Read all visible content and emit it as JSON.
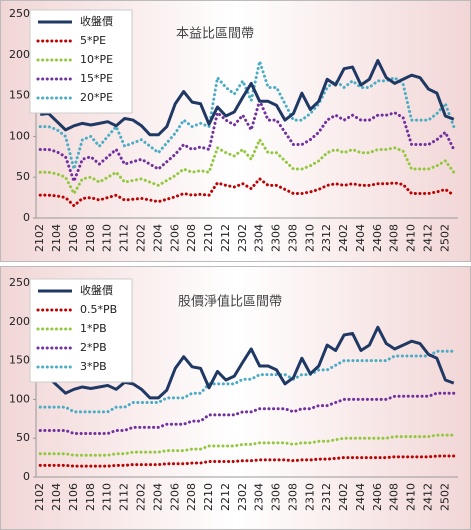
{
  "chart_data": [
    {
      "type": "line",
      "title": "本益比區間帶",
      "legend": "upper left",
      "grid": false,
      "categories": [
        "2102",
        null,
        "2104",
        null,
        "2106",
        null,
        "2108",
        null,
        "2110",
        null,
        "2112",
        null,
        "2202",
        null,
        "2204",
        null,
        "2206",
        null,
        "2208",
        null,
        "2210",
        null,
        "2212",
        null,
        "2302",
        null,
        "2304",
        null,
        "2306",
        null,
        "2308",
        null,
        "2310",
        null,
        "2312",
        null,
        "2402",
        null,
        "2404",
        null,
        "2406",
        null,
        "2408",
        null,
        "2410",
        null,
        "2412",
        null,
        "2502",
        null
      ],
      "ylim": [
        0,
        250
      ],
      "yticks": [
        0,
        50,
        100,
        150,
        200,
        250
      ],
      "series": [
        {
          "name": "收盤價",
          "color": "#1f3864",
          "style": "solid",
          "values": [
            127,
            128,
            118,
            108,
            113,
            116,
            114,
            116,
            118,
            113,
            122,
            120,
            113,
            102,
            102,
            112,
            140,
            155,
            142,
            140,
            115,
            136,
            125,
            130,
            148,
            165,
            143,
            143,
            138,
            120,
            128,
            153,
            133,
            143,
            170,
            163,
            183,
            185,
            163,
            170,
            193,
            172,
            165,
            170,
            175,
            172,
            158,
            153,
            125,
            121
          ]
        },
        {
          "name": "5*PE",
          "color": "#c00000",
          "style": "dotted",
          "values": [
            28,
            28,
            27,
            25,
            15,
            24,
            25,
            22,
            25,
            28,
            22,
            23,
            24,
            22,
            20,
            23,
            26,
            30,
            28,
            29,
            28,
            43,
            40,
            38,
            42,
            36,
            48,
            40,
            40,
            35,
            30,
            30,
            32,
            35,
            40,
            42,
            40,
            42,
            40,
            40,
            42,
            42,
            43,
            41,
            30,
            30,
            30,
            32,
            35,
            28
          ]
        },
        {
          "name": "10*PE",
          "color": "#92c83e",
          "style": "dotted",
          "values": [
            56,
            56,
            54,
            50,
            30,
            48,
            50,
            44,
            50,
            56,
            44,
            46,
            48,
            44,
            40,
            46,
            52,
            60,
            56,
            58,
            56,
            86,
            80,
            76,
            84,
            72,
            96,
            80,
            80,
            70,
            60,
            60,
            64,
            70,
            80,
            84,
            80,
            84,
            80,
            80,
            84,
            84,
            86,
            82,
            60,
            60,
            60,
            64,
            70,
            56
          ]
        },
        {
          "name": "15*PE",
          "color": "#7030a0",
          "style": "dotted",
          "values": [
            84,
            84,
            81,
            75,
            45,
            72,
            75,
            66,
            75,
            84,
            66,
            69,
            72,
            66,
            60,
            69,
            78,
            90,
            84,
            87,
            84,
            129,
            120,
            114,
            126,
            108,
            144,
            120,
            120,
            105,
            90,
            90,
            96,
            105,
            120,
            126,
            120,
            126,
            120,
            120,
            126,
            126,
            129,
            123,
            90,
            90,
            90,
            96,
            105,
            84
          ]
        },
        {
          "name": "20*PE",
          "color": "#4bacc6",
          "style": "dotted",
          "values": [
            112,
            112,
            108,
            100,
            60,
            96,
            100,
            88,
            100,
            112,
            88,
            92,
            96,
            88,
            80,
            92,
            104,
            120,
            112,
            116,
            112,
            172,
            160,
            152,
            168,
            144,
            192,
            160,
            160,
            140,
            120,
            120,
            128,
            140,
            160,
            168,
            160,
            168,
            160,
            160,
            168,
            168,
            172,
            164,
            120,
            120,
            120,
            128,
            140,
            112
          ]
        }
      ]
    },
    {
      "type": "line",
      "title": "股價淨值比區間帶",
      "legend": "upper left",
      "grid": false,
      "categories": [
        "2102",
        null,
        "2104",
        null,
        "2106",
        null,
        "2108",
        null,
        "2110",
        null,
        "2112",
        null,
        "2202",
        null,
        "2204",
        null,
        "2206",
        null,
        "2208",
        null,
        "2210",
        null,
        "2212",
        null,
        "2302",
        null,
        "2304",
        null,
        "2306",
        null,
        "2308",
        null,
        "2310",
        null,
        "2312",
        null,
        "2402",
        null,
        "2404",
        null,
        "2406",
        null,
        "2408",
        null,
        "2410",
        null,
        "2412",
        null,
        "2502",
        null
      ],
      "ylim": [
        0,
        250
      ],
      "yticks": [
        0,
        50,
        100,
        150,
        200,
        250
      ],
      "series": [
        {
          "name": "收盤價",
          "color": "#1f3864",
          "style": "solid",
          "values": [
            127,
            128,
            118,
            108,
            113,
            116,
            114,
            116,
            118,
            113,
            122,
            120,
            113,
            102,
            102,
            112,
            140,
            155,
            142,
            140,
            115,
            136,
            125,
            130,
            148,
            165,
            143,
            143,
            138,
            120,
            128,
            153,
            133,
            143,
            170,
            163,
            183,
            185,
            163,
            170,
            193,
            172,
            165,
            170,
            175,
            172,
            158,
            153,
            125,
            121
          ]
        },
        {
          "name": "0.5*PB",
          "color": "#c00000",
          "style": "dotted",
          "values": [
            15,
            15,
            15,
            15,
            14,
            14,
            14,
            14,
            14,
            15,
            15,
            16,
            16,
            16,
            16,
            17,
            17,
            17,
            18,
            18,
            20,
            20,
            20,
            20,
            21,
            21,
            22,
            22,
            22,
            22,
            21,
            22,
            22,
            23,
            23,
            24,
            25,
            25,
            25,
            25,
            25,
            25,
            26,
            26,
            26,
            26,
            26,
            27,
            27,
            27
          ]
        },
        {
          "name": "1*PB",
          "color": "#92c83e",
          "style": "dotted",
          "values": [
            30,
            30,
            30,
            30,
            28,
            28,
            28,
            28,
            28,
            30,
            30,
            32,
            32,
            32,
            32,
            34,
            34,
            34,
            36,
            36,
            40,
            40,
            40,
            40,
            42,
            42,
            44,
            44,
            44,
            44,
            42,
            44,
            44,
            46,
            46,
            48,
            50,
            50,
            50,
            50,
            50,
            50,
            52,
            52,
            52,
            52,
            52,
            54,
            54,
            54
          ]
        },
        {
          "name": "2*PB",
          "color": "#7030a0",
          "style": "dotted",
          "values": [
            60,
            60,
            60,
            60,
            56,
            56,
            56,
            56,
            56,
            60,
            60,
            64,
            64,
            64,
            64,
            68,
            68,
            68,
            72,
            72,
            80,
            80,
            80,
            80,
            84,
            84,
            88,
            88,
            88,
            88,
            84,
            88,
            88,
            92,
            92,
            96,
            100,
            100,
            100,
            100,
            100,
            100,
            104,
            104,
            104,
            104,
            104,
            108,
            108,
            108
          ]
        },
        {
          "name": "3*PB",
          "color": "#4bacc6",
          "style": "dotted",
          "values": [
            90,
            90,
            90,
            90,
            84,
            84,
            84,
            84,
            84,
            90,
            90,
            96,
            96,
            96,
            96,
            102,
            102,
            102,
            108,
            108,
            120,
            120,
            120,
            120,
            126,
            126,
            132,
            132,
            132,
            132,
            126,
            132,
            132,
            138,
            138,
            144,
            150,
            150,
            150,
            150,
            150,
            150,
            156,
            156,
            156,
            156,
            156,
            162,
            162,
            162
          ]
        }
      ]
    }
  ]
}
